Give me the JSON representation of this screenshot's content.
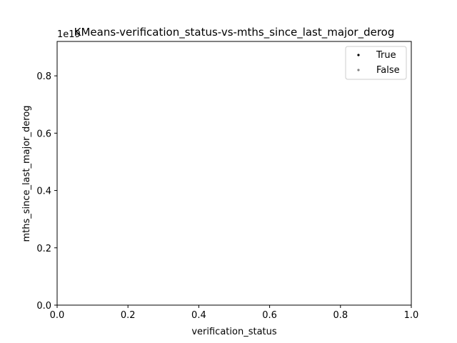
{
  "chart_data": {
    "type": "scatter",
    "title": "KMeans-verification_status-vs-mths_since_last_major_derog",
    "xlabel": "verification_status",
    "ylabel": "mths_since_last_major_derog",
    "y_offset_label": "1e19",
    "xlim": [
      0.0,
      1.0
    ],
    "ylim": [
      0.0,
      0.92
    ],
    "xticks": [
      "0.0",
      "0.2",
      "0.4",
      "0.6",
      "0.8",
      "1.0"
    ],
    "xtick_values": [
      0.0,
      0.2,
      0.4,
      0.6,
      0.8,
      1.0
    ],
    "yticks": [
      "0.0",
      "0.2",
      "0.4",
      "0.6",
      "0.8"
    ],
    "ytick_values": [
      0.0,
      0.2,
      0.4,
      0.6,
      0.8
    ],
    "grid": false,
    "legend_position": "top-right",
    "series": [
      {
        "name": "True",
        "color": "#000000",
        "points": []
      },
      {
        "name": "False",
        "color": "#808080",
        "points": []
      }
    ]
  }
}
